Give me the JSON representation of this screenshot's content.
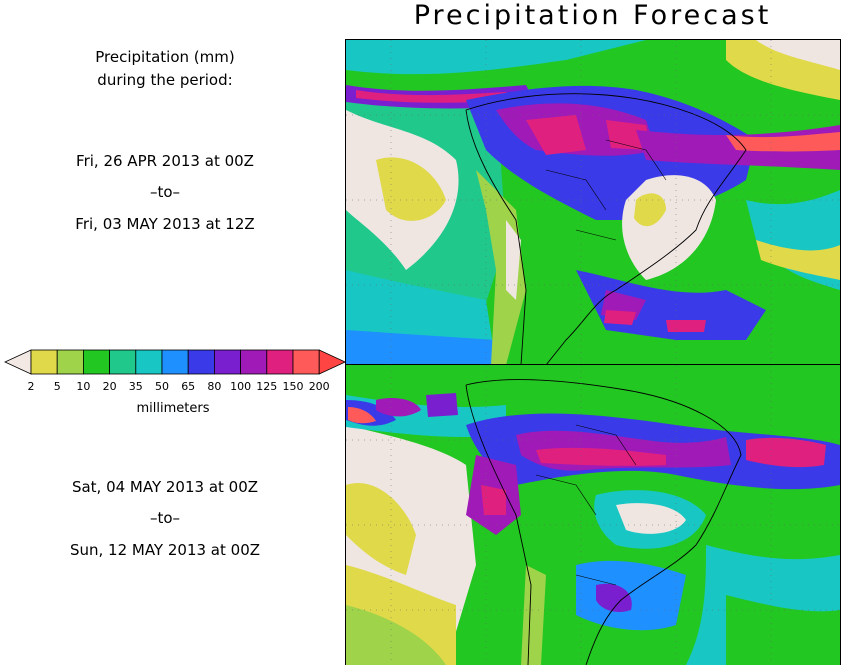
{
  "title": "Precipitation Forecast",
  "header": {
    "line1": "Precipitation (mm)",
    "line2": "during the period:"
  },
  "period1": {
    "start": "Fri, 26 APR 2013 at 00Z",
    "sep": "–to–",
    "end": "Fri, 03 MAY 2013 at 12Z"
  },
  "period2": {
    "start": "Sat, 04 MAY 2013 at 00Z",
    "sep": "–to–",
    "end": "Sun, 12 MAY 2013 at 00Z"
  },
  "colorbar": {
    "units_label": "millimeters",
    "ticks": [
      "2",
      "5",
      "10",
      "20",
      "35",
      "50",
      "65",
      "80",
      "100",
      "125",
      "150",
      "200"
    ],
    "colors": [
      "#e0d94a",
      "#9ed34a",
      "#22c722",
      "#20c88c",
      "#18c7c4",
      "#1e90ff",
      "#3a3ae8",
      "#7a1fd0",
      "#a01ab8",
      "#e0207f",
      "#ff5a5a"
    ],
    "under_color": "#f2e8e4",
    "over_color": "#ff4444"
  },
  "palette": {
    "dry": "#efe6e2",
    "yellow": "#e0d94a",
    "lightgreen": "#9ed34a",
    "green": "#22c722",
    "teal": "#20c88c",
    "cyan": "#18c7c4",
    "blue": "#1e90ff",
    "darkblue": "#3a3ae8",
    "purple": "#7a1fd0",
    "violet": "#a01ab8",
    "magenta": "#e0207f",
    "red": "#ff5a5a"
  }
}
